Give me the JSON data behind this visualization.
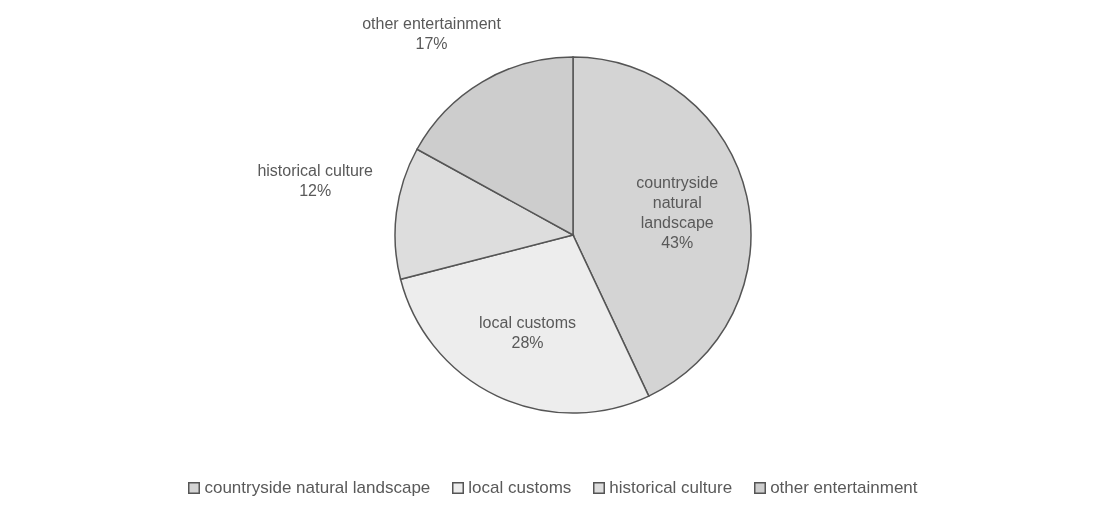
{
  "chart_data": {
    "type": "pie",
    "categories": [
      "countryside natural landscape",
      "local customs",
      "historical culture",
      "other entertainment"
    ],
    "values": [
      43,
      28,
      12,
      17
    ],
    "colors": [
      "#d4d4d4",
      "#ededed",
      "#dddddd",
      "#cdcdcd"
    ],
    "value_labels": [
      "43%",
      "28%",
      "12%",
      "17%"
    ],
    "legend": "bottom"
  }
}
